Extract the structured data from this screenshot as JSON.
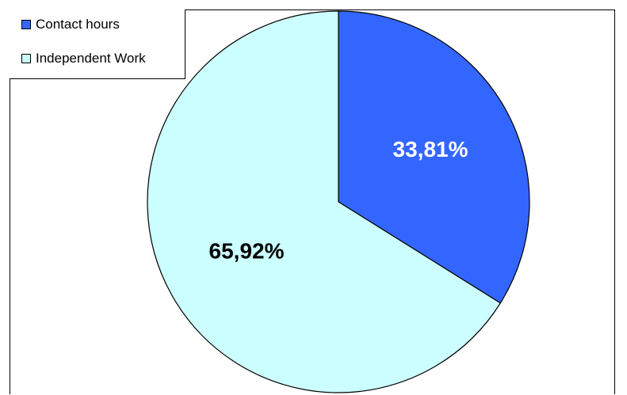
{
  "chart_data": {
    "type": "pie",
    "categories": [
      "Contact hours",
      "Independent Work"
    ],
    "values": [
      33.81,
      65.92
    ],
    "data_labels": [
      "33,81%",
      "65,92%"
    ],
    "colors": [
      "#3366ff",
      "#ccffff"
    ],
    "label_colors": [
      "#ffffff",
      "#000000"
    ],
    "legend_position": "top-left",
    "start_angle_deg": 0,
    "direction": "clockwise"
  }
}
